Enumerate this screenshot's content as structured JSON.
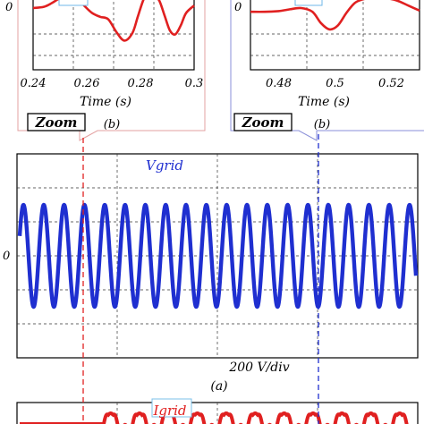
{
  "chart_data": [
    {
      "type": "line",
      "panel": "zoom-left",
      "xlabel": "Time (s)",
      "x_ticks": [
        "0.24",
        "0.26",
        "0.28",
        "0.3"
      ],
      "xlim": [
        0.24,
        0.3
      ],
      "y_ticks": [
        "0"
      ],
      "grid": true,
      "zoom_label": "Zoom",
      "caption": "(b)",
      "series": [
        {
          "color": "#e02020",
          "x": [
            0.24,
            0.244,
            0.247,
            0.25,
            0.253,
            0.256,
            0.259,
            0.262,
            0.265,
            0.268,
            0.271,
            0.274,
            0.277,
            0.279,
            0.281,
            0.283,
            0.285,
            0.287,
            0.289,
            0.291,
            0.293,
            0.295,
            0.297,
            0.3
          ],
          "y": [
            0.0,
            0.05,
            0.2,
            0.4,
            0.55,
            0.45,
            0.1,
            -0.2,
            -0.35,
            -0.45,
            -0.95,
            -1.3,
            -1.0,
            -0.35,
            0.3,
            0.75,
            0.5,
            0.3,
            -0.3,
            -0.9,
            -1.05,
            -0.7,
            -0.2,
            0.1
          ]
        }
      ]
    },
    {
      "type": "line",
      "panel": "zoom-right",
      "xlabel": "Time (s)",
      "x_ticks": [
        "0.48",
        "0.5",
        "0.52"
      ],
      "xlim": [
        0.47,
        0.53
      ],
      "y_ticks": [
        "0"
      ],
      "grid": true,
      "zoom_label": "Zoom",
      "caption": "(b)",
      "series": [
        {
          "color": "#e02020",
          "x": [
            0.47,
            0.475,
            0.48,
            0.484,
            0.488,
            0.492,
            0.495,
            0.498,
            0.501,
            0.504,
            0.507,
            0.51,
            0.514,
            0.518,
            0.522,
            0.526,
            0.53
          ],
          "y": [
            -0.15,
            -0.15,
            -0.12,
            -0.05,
            0.0,
            -0.15,
            -0.6,
            -0.85,
            -0.7,
            -0.2,
            0.2,
            0.35,
            0.45,
            0.4,
            0.3,
            0.1,
            -0.1
          ]
        }
      ]
    },
    {
      "type": "line",
      "panel": "vgrid",
      "series_label": "Vgrid",
      "scale_label": "200 V/div",
      "caption": "(a)",
      "y_ticks": [
        "0"
      ],
      "grid": true,
      "series": [
        {
          "color": "#1f2fd0",
          "cycles": 19.5,
          "amplitude_div": 1.5
        }
      ]
    },
    {
      "type": "line",
      "panel": "igrid",
      "series_label": "Igrid",
      "grid": true,
      "series": [
        {
          "color": "#e02020",
          "cycles": 10.5,
          "start_fraction": 0.2
        }
      ]
    }
  ]
}
